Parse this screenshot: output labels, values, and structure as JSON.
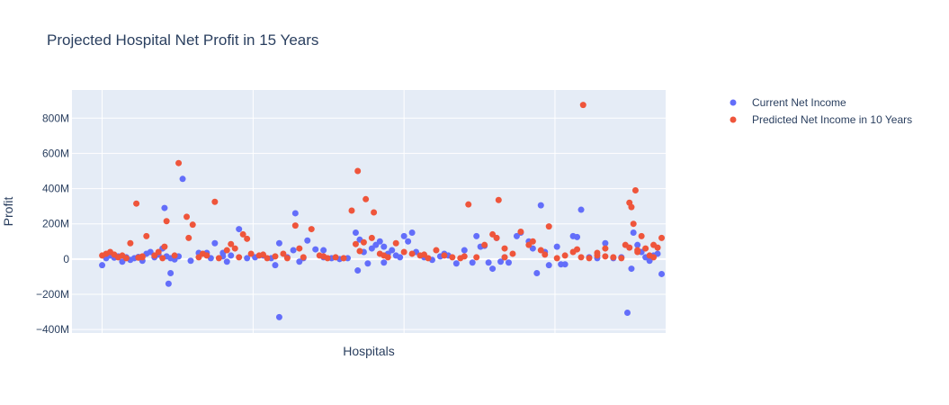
{
  "chart_data": {
    "type": "scatter",
    "title": "Projected Hospital Net Profit in 15 Years",
    "xlabel": "Hospitals",
    "ylabel": "Profit",
    "ylim": [
      -420000000,
      960000000
    ],
    "yticks": [
      -400000000,
      -200000000,
      0,
      200000000,
      400000000,
      600000000,
      800000000
    ],
    "ytick_labels": [
      "−400M",
      "−200M",
      "0",
      "200M",
      "400M",
      "600M",
      "800M"
    ],
    "x_range": [
      -15,
      280
    ],
    "grid": true,
    "legend_position": "top-right",
    "series": [
      {
        "name": "Current Net Income",
        "color": "#636efa",
        "points": [
          [
            0,
            -35000000
          ],
          [
            2,
            5000000
          ],
          [
            4,
            20000000
          ],
          [
            6,
            8000000
          ],
          [
            8,
            15000000
          ],
          [
            10,
            -15000000
          ],
          [
            12,
            10000000
          ],
          [
            14,
            -5000000
          ],
          [
            16,
            5000000
          ],
          [
            18,
            12000000
          ],
          [
            20,
            -10000000
          ],
          [
            22,
            30000000
          ],
          [
            24,
            40000000
          ],
          [
            26,
            10000000
          ],
          [
            28,
            25000000
          ],
          [
            30,
            60000000
          ],
          [
            32,
            15000000
          ],
          [
            34,
            5000000
          ],
          [
            36,
            -2000000
          ],
          [
            38,
            15000000
          ],
          [
            31,
            290000000
          ],
          [
            33,
            -140000000
          ],
          [
            34,
            -80000000
          ],
          [
            40,
            455000000
          ],
          [
            44,
            -10000000
          ],
          [
            48,
            35000000
          ],
          [
            52,
            35000000
          ],
          [
            54,
            5000000
          ],
          [
            56,
            90000000
          ],
          [
            60,
            35000000
          ],
          [
            62,
            -15000000
          ],
          [
            64,
            20000000
          ],
          [
            68,
            170000000
          ],
          [
            72,
            5000000
          ],
          [
            76,
            10000000
          ],
          [
            80,
            20000000
          ],
          [
            84,
            5000000
          ],
          [
            86,
            -35000000
          ],
          [
            88,
            90000000
          ],
          [
            92,
            10000000
          ],
          [
            95,
            50000000
          ],
          [
            96,
            260000000
          ],
          [
            88,
            -330000000
          ],
          [
            98,
            -15000000
          ],
          [
            100,
            5000000
          ],
          [
            102,
            105000000
          ],
          [
            106,
            55000000
          ],
          [
            110,
            10000000
          ],
          [
            114,
            5000000
          ],
          [
            118,
            0
          ],
          [
            122,
            5000000
          ],
          [
            126,
            150000000
          ],
          [
            127,
            -65000000
          ],
          [
            128,
            110000000
          ],
          [
            130,
            40000000
          ],
          [
            132,
            -25000000
          ],
          [
            134,
            60000000
          ],
          [
            136,
            80000000
          ],
          [
            138,
            100000000
          ],
          [
            140,
            -20000000
          ],
          [
            142,
            30000000
          ],
          [
            144,
            50000000
          ],
          [
            146,
            20000000
          ],
          [
            148,
            10000000
          ],
          [
            150,
            130000000
          ],
          [
            152,
            100000000
          ],
          [
            154,
            150000000
          ],
          [
            156,
            40000000
          ],
          [
            160,
            10000000
          ],
          [
            164,
            -5000000
          ],
          [
            168,
            15000000
          ],
          [
            172,
            20000000
          ],
          [
            176,
            -25000000
          ],
          [
            180,
            50000000
          ],
          [
            184,
            -20000000
          ],
          [
            186,
            130000000
          ],
          [
            188,
            70000000
          ],
          [
            190,
            75000000
          ],
          [
            192,
            -20000000
          ],
          [
            194,
            -55000000
          ],
          [
            196,
            120000000
          ],
          [
            198,
            -15000000
          ],
          [
            202,
            -20000000
          ],
          [
            206,
            130000000
          ],
          [
            208,
            150000000
          ],
          [
            212,
            100000000
          ],
          [
            214,
            60000000
          ],
          [
            216,
            -80000000
          ],
          [
            218,
            305000000
          ],
          [
            222,
            -35000000
          ],
          [
            226,
            70000000
          ],
          [
            228,
            -30000000
          ],
          [
            230,
            -30000000
          ],
          [
            234,
            130000000
          ],
          [
            236,
            125000000
          ],
          [
            238,
            280000000
          ],
          [
            242,
            10000000
          ],
          [
            246,
            5000000
          ],
          [
            250,
            90000000
          ],
          [
            254,
            5000000
          ],
          [
            258,
            10000000
          ],
          [
            261,
            -305000000
          ],
          [
            263,
            -55000000
          ],
          [
            264,
            150000000
          ],
          [
            266,
            80000000
          ],
          [
            268,
            40000000
          ],
          [
            270,
            10000000
          ],
          [
            272,
            -10000000
          ],
          [
            274,
            20000000
          ],
          [
            276,
            30000000
          ],
          [
            278,
            -85000000
          ],
          [
            110,
            50000000
          ],
          [
            140,
            70000000
          ],
          [
            60,
            15000000
          ],
          [
            200,
            10000000
          ],
          [
            220,
            40000000
          ],
          [
            170,
            30000000
          ]
        ]
      },
      {
        "name": "Predicted Net Income in 10 Years",
        "color": "#ef553b",
        "points": [
          [
            0,
            20000000
          ],
          [
            2,
            30000000
          ],
          [
            4,
            40000000
          ],
          [
            6,
            25000000
          ],
          [
            8,
            10000000
          ],
          [
            10,
            20000000
          ],
          [
            12,
            5000000
          ],
          [
            14,
            90000000
          ],
          [
            17,
            315000000
          ],
          [
            20,
            10000000
          ],
          [
            22,
            130000000
          ],
          [
            26,
            20000000
          ],
          [
            28,
            40000000
          ],
          [
            30,
            5000000
          ],
          [
            31,
            70000000
          ],
          [
            32,
            215000000
          ],
          [
            36,
            20000000
          ],
          [
            38,
            545000000
          ],
          [
            42,
            240000000
          ],
          [
            43,
            120000000
          ],
          [
            45,
            195000000
          ],
          [
            48,
            10000000
          ],
          [
            52,
            20000000
          ],
          [
            56,
            325000000
          ],
          [
            58,
            5000000
          ],
          [
            62,
            50000000
          ],
          [
            64,
            85000000
          ],
          [
            66,
            60000000
          ],
          [
            68,
            10000000
          ],
          [
            70,
            140000000
          ],
          [
            72,
            115000000
          ],
          [
            74,
            30000000
          ],
          [
            78,
            20000000
          ],
          [
            82,
            5000000
          ],
          [
            86,
            15000000
          ],
          [
            90,
            30000000
          ],
          [
            92,
            5000000
          ],
          [
            96,
            190000000
          ],
          [
            98,
            60000000
          ],
          [
            100,
            10000000
          ],
          [
            104,
            170000000
          ],
          [
            108,
            20000000
          ],
          [
            112,
            5000000
          ],
          [
            116,
            10000000
          ],
          [
            120,
            5000000
          ],
          [
            124,
            275000000
          ],
          [
            126,
            85000000
          ],
          [
            127,
            500000000
          ],
          [
            130,
            95000000
          ],
          [
            131,
            340000000
          ],
          [
            134,
            120000000
          ],
          [
            135,
            265000000
          ],
          [
            138,
            30000000
          ],
          [
            142,
            10000000
          ],
          [
            146,
            90000000
          ],
          [
            150,
            40000000
          ],
          [
            154,
            30000000
          ],
          [
            158,
            20000000
          ],
          [
            162,
            5000000
          ],
          [
            166,
            50000000
          ],
          [
            170,
            20000000
          ],
          [
            174,
            10000000
          ],
          [
            178,
            5000000
          ],
          [
            182,
            310000000
          ],
          [
            186,
            10000000
          ],
          [
            190,
            80000000
          ],
          [
            194,
            140000000
          ],
          [
            196,
            120000000
          ],
          [
            197,
            335000000
          ],
          [
            200,
            60000000
          ],
          [
            204,
            30000000
          ],
          [
            208,
            155000000
          ],
          [
            212,
            80000000
          ],
          [
            214,
            100000000
          ],
          [
            218,
            50000000
          ],
          [
            222,
            185000000
          ],
          [
            226,
            5000000
          ],
          [
            230,
            20000000
          ],
          [
            234,
            40000000
          ],
          [
            236,
            55000000
          ],
          [
            238,
            10000000
          ],
          [
            239,
            875000000
          ],
          [
            242,
            5000000
          ],
          [
            246,
            20000000
          ],
          [
            250,
            60000000
          ],
          [
            254,
            10000000
          ],
          [
            258,
            5000000
          ],
          [
            260,
            80000000
          ],
          [
            262,
            65000000
          ],
          [
            262,
            320000000
          ],
          [
            263,
            295000000
          ],
          [
            264,
            200000000
          ],
          [
            265,
            390000000
          ],
          [
            266,
            50000000
          ],
          [
            268,
            130000000
          ],
          [
            270,
            60000000
          ],
          [
            272,
            20000000
          ],
          [
            274,
            80000000
          ],
          [
            276,
            65000000
          ],
          [
            278,
            120000000
          ],
          [
            20,
            15000000
          ],
          [
            50,
            30000000
          ],
          [
            80,
            25000000
          ],
          [
            110,
            15000000
          ],
          [
            140,
            20000000
          ],
          [
            160,
            25000000
          ],
          [
            180,
            15000000
          ],
          [
            200,
            10000000
          ],
          [
            220,
            25000000
          ],
          [
            250,
            15000000
          ],
          [
            274,
            10000000
          ],
          [
            246,
            35000000
          ],
          [
            266,
            40000000
          ],
          [
            18,
            8000000
          ],
          [
            128,
            45000000
          ]
        ]
      }
    ]
  }
}
